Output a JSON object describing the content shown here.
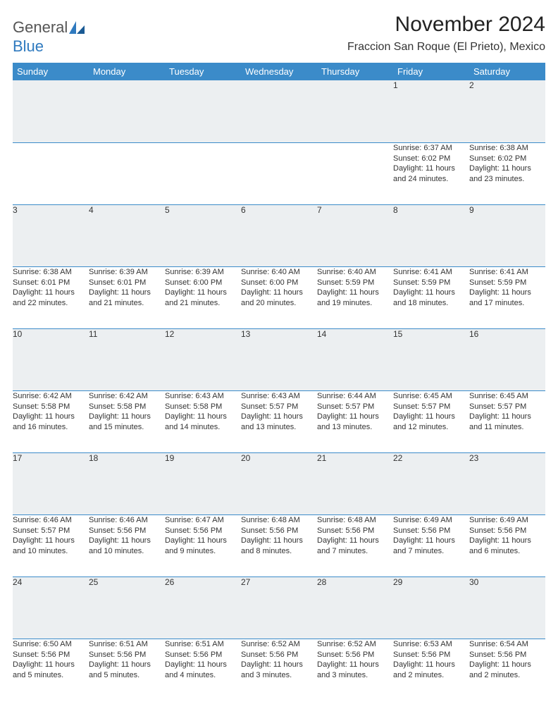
{
  "logo": {
    "general": "General",
    "blue": "Blue"
  },
  "title": "November 2024",
  "location": "Fraccion San Roque (El Prieto), Mexico",
  "colors": {
    "header_bg": "#3b8bc9",
    "header_text": "#ffffff",
    "daynum_bg": "#eceff1",
    "border": "#3b8bc9",
    "background": "#ffffff",
    "text": "#333333",
    "logo_grey": "#555555",
    "logo_blue": "#2f7abf"
  },
  "typography": {
    "title_fontsize": 30,
    "location_fontsize": 16,
    "weekday_fontsize": 13,
    "daynum_fontsize": 12,
    "body_fontsize": 11
  },
  "weekdays": [
    "Sunday",
    "Monday",
    "Tuesday",
    "Wednesday",
    "Thursday",
    "Friday",
    "Saturday"
  ],
  "weeks": [
    [
      null,
      null,
      null,
      null,
      null,
      {
        "day": "1",
        "sunrise": "Sunrise: 6:37 AM",
        "sunset": "Sunset: 6:02 PM",
        "daylight": "Daylight: 11 hours and 24 minutes."
      },
      {
        "day": "2",
        "sunrise": "Sunrise: 6:38 AM",
        "sunset": "Sunset: 6:02 PM",
        "daylight": "Daylight: 11 hours and 23 minutes."
      }
    ],
    [
      {
        "day": "3",
        "sunrise": "Sunrise: 6:38 AM",
        "sunset": "Sunset: 6:01 PM",
        "daylight": "Daylight: 11 hours and 22 minutes."
      },
      {
        "day": "4",
        "sunrise": "Sunrise: 6:39 AM",
        "sunset": "Sunset: 6:01 PM",
        "daylight": "Daylight: 11 hours and 21 minutes."
      },
      {
        "day": "5",
        "sunrise": "Sunrise: 6:39 AM",
        "sunset": "Sunset: 6:00 PM",
        "daylight": "Daylight: 11 hours and 21 minutes."
      },
      {
        "day": "6",
        "sunrise": "Sunrise: 6:40 AM",
        "sunset": "Sunset: 6:00 PM",
        "daylight": "Daylight: 11 hours and 20 minutes."
      },
      {
        "day": "7",
        "sunrise": "Sunrise: 6:40 AM",
        "sunset": "Sunset: 5:59 PM",
        "daylight": "Daylight: 11 hours and 19 minutes."
      },
      {
        "day": "8",
        "sunrise": "Sunrise: 6:41 AM",
        "sunset": "Sunset: 5:59 PM",
        "daylight": "Daylight: 11 hours and 18 minutes."
      },
      {
        "day": "9",
        "sunrise": "Sunrise: 6:41 AM",
        "sunset": "Sunset: 5:59 PM",
        "daylight": "Daylight: 11 hours and 17 minutes."
      }
    ],
    [
      {
        "day": "10",
        "sunrise": "Sunrise: 6:42 AM",
        "sunset": "Sunset: 5:58 PM",
        "daylight": "Daylight: 11 hours and 16 minutes."
      },
      {
        "day": "11",
        "sunrise": "Sunrise: 6:42 AM",
        "sunset": "Sunset: 5:58 PM",
        "daylight": "Daylight: 11 hours and 15 minutes."
      },
      {
        "day": "12",
        "sunrise": "Sunrise: 6:43 AM",
        "sunset": "Sunset: 5:58 PM",
        "daylight": "Daylight: 11 hours and 14 minutes."
      },
      {
        "day": "13",
        "sunrise": "Sunrise: 6:43 AM",
        "sunset": "Sunset: 5:57 PM",
        "daylight": "Daylight: 11 hours and 13 minutes."
      },
      {
        "day": "14",
        "sunrise": "Sunrise: 6:44 AM",
        "sunset": "Sunset: 5:57 PM",
        "daylight": "Daylight: 11 hours and 13 minutes."
      },
      {
        "day": "15",
        "sunrise": "Sunrise: 6:45 AM",
        "sunset": "Sunset: 5:57 PM",
        "daylight": "Daylight: 11 hours and 12 minutes."
      },
      {
        "day": "16",
        "sunrise": "Sunrise: 6:45 AM",
        "sunset": "Sunset: 5:57 PM",
        "daylight": "Daylight: 11 hours and 11 minutes."
      }
    ],
    [
      {
        "day": "17",
        "sunrise": "Sunrise: 6:46 AM",
        "sunset": "Sunset: 5:57 PM",
        "daylight": "Daylight: 11 hours and 10 minutes."
      },
      {
        "day": "18",
        "sunrise": "Sunrise: 6:46 AM",
        "sunset": "Sunset: 5:56 PM",
        "daylight": "Daylight: 11 hours and 10 minutes."
      },
      {
        "day": "19",
        "sunrise": "Sunrise: 6:47 AM",
        "sunset": "Sunset: 5:56 PM",
        "daylight": "Daylight: 11 hours and 9 minutes."
      },
      {
        "day": "20",
        "sunrise": "Sunrise: 6:48 AM",
        "sunset": "Sunset: 5:56 PM",
        "daylight": "Daylight: 11 hours and 8 minutes."
      },
      {
        "day": "21",
        "sunrise": "Sunrise: 6:48 AM",
        "sunset": "Sunset: 5:56 PM",
        "daylight": "Daylight: 11 hours and 7 minutes."
      },
      {
        "day": "22",
        "sunrise": "Sunrise: 6:49 AM",
        "sunset": "Sunset: 5:56 PM",
        "daylight": "Daylight: 11 hours and 7 minutes."
      },
      {
        "day": "23",
        "sunrise": "Sunrise: 6:49 AM",
        "sunset": "Sunset: 5:56 PM",
        "daylight": "Daylight: 11 hours and 6 minutes."
      }
    ],
    [
      {
        "day": "24",
        "sunrise": "Sunrise: 6:50 AM",
        "sunset": "Sunset: 5:56 PM",
        "daylight": "Daylight: 11 hours and 5 minutes."
      },
      {
        "day": "25",
        "sunrise": "Sunrise: 6:51 AM",
        "sunset": "Sunset: 5:56 PM",
        "daylight": "Daylight: 11 hours and 5 minutes."
      },
      {
        "day": "26",
        "sunrise": "Sunrise: 6:51 AM",
        "sunset": "Sunset: 5:56 PM",
        "daylight": "Daylight: 11 hours and 4 minutes."
      },
      {
        "day": "27",
        "sunrise": "Sunrise: 6:52 AM",
        "sunset": "Sunset: 5:56 PM",
        "daylight": "Daylight: 11 hours and 3 minutes."
      },
      {
        "day": "28",
        "sunrise": "Sunrise: 6:52 AM",
        "sunset": "Sunset: 5:56 PM",
        "daylight": "Daylight: 11 hours and 3 minutes."
      },
      {
        "day": "29",
        "sunrise": "Sunrise: 6:53 AM",
        "sunset": "Sunset: 5:56 PM",
        "daylight": "Daylight: 11 hours and 2 minutes."
      },
      {
        "day": "30",
        "sunrise": "Sunrise: 6:54 AM",
        "sunset": "Sunset: 5:56 PM",
        "daylight": "Daylight: 11 hours and 2 minutes."
      }
    ]
  ]
}
